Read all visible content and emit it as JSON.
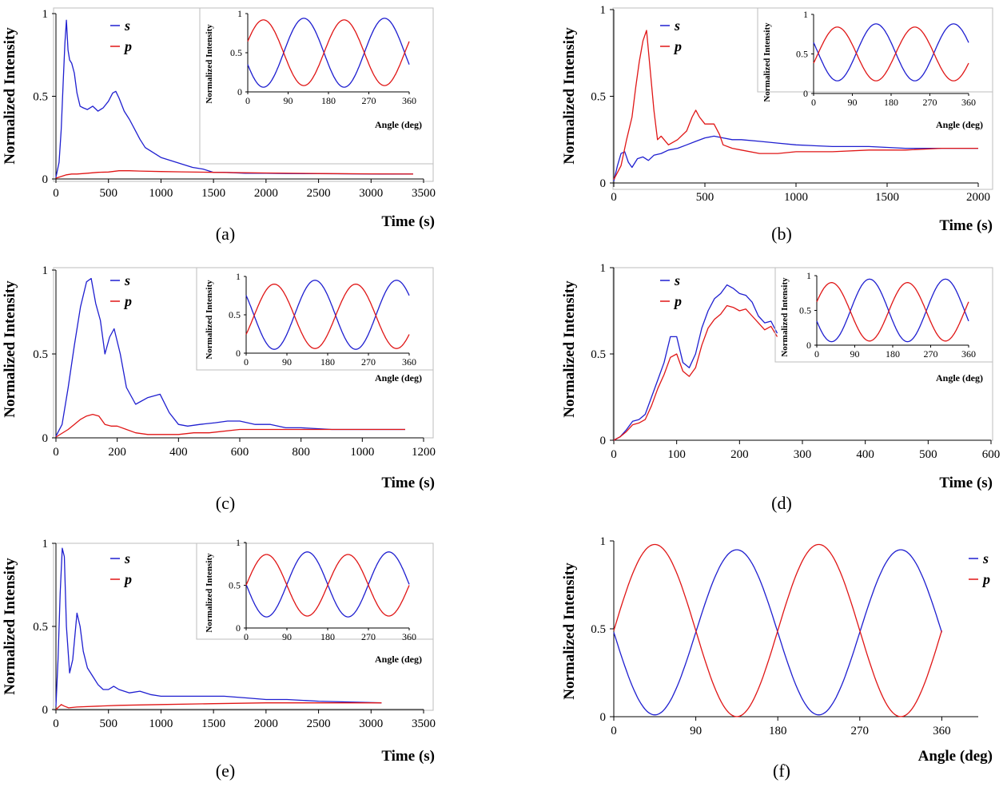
{
  "colors": {
    "s": "#1f1fd0",
    "p": "#e01616"
  },
  "chart_data": [
    {
      "type": "line",
      "caption": "(a)",
      "xlabel": "Time (s)",
      "ylabel": "Normalized Intensity",
      "xlim": [
        0,
        3500
      ],
      "ylim": [
        0,
        1
      ],
      "xticks": [
        0,
        500,
        1000,
        1500,
        2000,
        2500,
        3000,
        3500
      ],
      "yticks": [
        0,
        0.5,
        1
      ],
      "series": [
        {
          "name": "s",
          "x": [
            0,
            30,
            50,
            70,
            85,
            100,
            115,
            130,
            150,
            175,
            200,
            230,
            260,
            300,
            350,
            400,
            450,
            500,
            540,
            570,
            600,
            650,
            700,
            750,
            800,
            850,
            900,
            1000,
            1100,
            1200,
            1300,
            1400,
            1500,
            1600,
            1800,
            2000,
            2200,
            2500,
            2800,
            3100,
            3400
          ],
          "y": [
            0.01,
            0.1,
            0.3,
            0.6,
            0.82,
            0.96,
            0.78,
            0.72,
            0.7,
            0.64,
            0.52,
            0.44,
            0.43,
            0.42,
            0.44,
            0.41,
            0.43,
            0.47,
            0.52,
            0.53,
            0.49,
            0.41,
            0.36,
            0.3,
            0.24,
            0.19,
            0.17,
            0.13,
            0.11,
            0.09,
            0.07,
            0.06,
            0.04,
            0.04,
            0.035,
            0.035,
            0.033,
            0.032,
            0.031,
            0.03,
            0.03
          ]
        },
        {
          "name": "p",
          "x": [
            0,
            50,
            100,
            150,
            200,
            300,
            400,
            500,
            600,
            700,
            800,
            1000,
            1200,
            1500,
            2000,
            2500,
            3000,
            3400
          ],
          "y": [
            0.005,
            0.015,
            0.025,
            0.03,
            0.03,
            0.035,
            0.04,
            0.042,
            0.05,
            0.05,
            0.048,
            0.045,
            0.043,
            0.04,
            0.036,
            0.033,
            0.031,
            0.03
          ]
        }
      ],
      "inset": {
        "xlabel": "Angle (deg)",
        "ylabel": "Normalized Intensity",
        "xticks": [
          0,
          90,
          180,
          270,
          360
        ],
        "yticks": [
          0,
          0.5,
          1
        ],
        "s": {
          "mean": 0.5,
          "amp": -0.44,
          "phase_deg": 35
        },
        "p": {
          "mean": 0.5,
          "amp": 0.42,
          "phase_deg": 35
        }
      }
    },
    {
      "type": "line",
      "caption": "(b)",
      "xlabel": "Time (s)",
      "ylabel": "Normalized Intensity",
      "xlim": [
        0,
        2000
      ],
      "ylim": [
        0,
        1
      ],
      "xticks": [
        0,
        500,
        1000,
        1500,
        2000
      ],
      "yticks": [
        0,
        0.5,
        1
      ],
      "series": [
        {
          "name": "s",
          "x": [
            0,
            20,
            40,
            60,
            80,
            100,
            130,
            160,
            190,
            220,
            260,
            300,
            350,
            400,
            450,
            500,
            550,
            600,
            650,
            700,
            800,
            900,
            1000,
            1200,
            1400,
            1600,
            1800,
            2000
          ],
          "y": [
            0.01,
            0.1,
            0.17,
            0.18,
            0.12,
            0.09,
            0.14,
            0.15,
            0.13,
            0.16,
            0.17,
            0.19,
            0.2,
            0.22,
            0.24,
            0.26,
            0.27,
            0.26,
            0.25,
            0.25,
            0.24,
            0.23,
            0.22,
            0.21,
            0.21,
            0.2,
            0.2,
            0.2
          ]
        },
        {
          "name": "p",
          "x": [
            0,
            40,
            70,
            100,
            120,
            140,
            160,
            180,
            200,
            220,
            240,
            260,
            300,
            350,
            400,
            430,
            450,
            470,
            500,
            550,
            580,
            600,
            650,
            700,
            800,
            900,
            1000,
            1200,
            1400,
            1600,
            1800,
            2000
          ],
          "y": [
            0.02,
            0.1,
            0.25,
            0.38,
            0.55,
            0.7,
            0.82,
            0.88,
            0.65,
            0.42,
            0.25,
            0.27,
            0.22,
            0.25,
            0.3,
            0.38,
            0.42,
            0.38,
            0.34,
            0.34,
            0.28,
            0.22,
            0.2,
            0.19,
            0.17,
            0.17,
            0.18,
            0.18,
            0.19,
            0.19,
            0.2,
            0.2
          ]
        }
      ],
      "inset": {
        "xlabel": "Angle (deg)",
        "ylabel": "Normalized Intensity",
        "xticks": [
          0,
          90,
          180,
          270,
          360
        ],
        "yticks": [
          0,
          0.5,
          1
        ],
        "s": {
          "mean": 0.52,
          "amp": -0.36,
          "phase_deg": 55
        },
        "p": {
          "mean": 0.5,
          "amp": 0.34,
          "phase_deg": 55
        }
      }
    },
    {
      "type": "line",
      "caption": "(c)",
      "xlabel": "Time (s)",
      "ylabel": "Normalized Intensity",
      "xlim": [
        0,
        1200
      ],
      "ylim": [
        0,
        1
      ],
      "xticks": [
        0,
        200,
        400,
        600,
        800,
        1000,
        1200
      ],
      "yticks": [
        0,
        0.5,
        1
      ],
      "series": [
        {
          "name": "s",
          "x": [
            0,
            20,
            40,
            60,
            80,
            100,
            115,
            130,
            145,
            160,
            175,
            190,
            210,
            230,
            260,
            300,
            340,
            370,
            400,
            430,
            470,
            520,
            560,
            600,
            650,
            700,
            750,
            800,
            900,
            1000,
            1140
          ],
          "y": [
            0.01,
            0.08,
            0.3,
            0.55,
            0.78,
            0.93,
            0.95,
            0.8,
            0.7,
            0.5,
            0.6,
            0.65,
            0.5,
            0.3,
            0.2,
            0.24,
            0.26,
            0.15,
            0.08,
            0.07,
            0.08,
            0.09,
            0.1,
            0.1,
            0.08,
            0.08,
            0.06,
            0.06,
            0.05,
            0.05,
            0.05
          ]
        },
        {
          "name": "p",
          "x": [
            0,
            40,
            60,
            80,
            100,
            120,
            140,
            160,
            180,
            200,
            230,
            260,
            300,
            350,
            400,
            450,
            500,
            600,
            700,
            800,
            900,
            1000,
            1140
          ],
          "y": [
            0.005,
            0.05,
            0.08,
            0.11,
            0.13,
            0.14,
            0.13,
            0.08,
            0.07,
            0.07,
            0.05,
            0.03,
            0.02,
            0.02,
            0.02,
            0.03,
            0.03,
            0.05,
            0.05,
            0.05,
            0.05,
            0.05,
            0.05
          ]
        }
      ],
      "inset": {
        "xlabel": "Angle (deg)",
        "ylabel": "Normalized Intensity",
        "xticks": [
          0,
          90,
          180,
          270,
          360
        ],
        "yticks": [
          0,
          0.5,
          1
        ],
        "s": {
          "mean": 0.5,
          "amp": -0.45,
          "phase_deg": 62
        },
        "p": {
          "mean": 0.48,
          "amp": 0.42,
          "phase_deg": 62
        }
      }
    },
    {
      "type": "line",
      "caption": "(d)",
      "xlabel": "Time (s)",
      "ylabel": "Normalized Intensity",
      "xlim": [
        0,
        600
      ],
      "ylim": [
        0,
        1
      ],
      "xticks": [
        0,
        100,
        200,
        300,
        400,
        500,
        600
      ],
      "yticks": [
        0,
        0.5,
        1
      ],
      "series": [
        {
          "name": "s",
          "x": [
            0,
            10,
            20,
            30,
            40,
            50,
            60,
            70,
            80,
            90,
            100,
            110,
            120,
            130,
            140,
            150,
            160,
            170,
            180,
            190,
            200,
            210,
            220,
            230,
            240,
            250,
            260
          ],
          "y": [
            0.0,
            0.02,
            0.06,
            0.11,
            0.12,
            0.15,
            0.25,
            0.35,
            0.45,
            0.6,
            0.6,
            0.45,
            0.42,
            0.5,
            0.65,
            0.75,
            0.82,
            0.85,
            0.9,
            0.88,
            0.85,
            0.84,
            0.8,
            0.72,
            0.68,
            0.69,
            0.62
          ]
        },
        {
          "name": "p",
          "x": [
            0,
            10,
            20,
            30,
            40,
            50,
            60,
            70,
            80,
            90,
            100,
            110,
            120,
            130,
            140,
            150,
            160,
            170,
            180,
            190,
            200,
            210,
            220,
            230,
            240,
            250,
            260
          ],
          "y": [
            0.0,
            0.02,
            0.05,
            0.09,
            0.1,
            0.12,
            0.2,
            0.3,
            0.38,
            0.48,
            0.5,
            0.4,
            0.37,
            0.42,
            0.55,
            0.65,
            0.7,
            0.73,
            0.78,
            0.77,
            0.75,
            0.76,
            0.72,
            0.68,
            0.64,
            0.66,
            0.6
          ]
        }
      ],
      "inset": {
        "xlabel": "Angle (deg)",
        "ylabel": "Normalized Intensity",
        "xticks": [
          0,
          90,
          180,
          270,
          360
        ],
        "yticks": [
          0,
          0.5,
          1
        ],
        "s": {
          "mean": 0.5,
          "amp": -0.45,
          "phase_deg": 35
        },
        "p": {
          "mean": 0.48,
          "amp": 0.42,
          "phase_deg": 35
        }
      }
    },
    {
      "type": "line",
      "caption": "(e)",
      "xlabel": "Time (s)",
      "ylabel": "Normalized Intensity",
      "xlim": [
        0,
        3500
      ],
      "ylim": [
        0,
        1
      ],
      "xticks": [
        0,
        500,
        1000,
        1500,
        2000,
        2500,
        3000,
        3500
      ],
      "yticks": [
        0,
        0.5,
        1
      ],
      "series": [
        {
          "name": "s",
          "x": [
            0,
            20,
            40,
            60,
            80,
            100,
            130,
            160,
            200,
            230,
            260,
            300,
            350,
            400,
            450,
            500,
            550,
            600,
            700,
            800,
            900,
            1000,
            1200,
            1400,
            1600,
            1800,
            2000,
            2200,
            2500,
            2800,
            3100
          ],
          "y": [
            0.02,
            0.3,
            0.7,
            0.97,
            0.92,
            0.5,
            0.22,
            0.3,
            0.58,
            0.5,
            0.35,
            0.25,
            0.2,
            0.15,
            0.12,
            0.12,
            0.14,
            0.12,
            0.1,
            0.11,
            0.09,
            0.08,
            0.08,
            0.08,
            0.08,
            0.07,
            0.06,
            0.06,
            0.05,
            0.045,
            0.04
          ]
        },
        {
          "name": "p",
          "x": [
            0,
            50,
            80,
            120,
            200,
            400,
            600,
            1000,
            1500,
            2000,
            2500,
            3100
          ],
          "y": [
            0.0,
            0.03,
            0.02,
            0.01,
            0.015,
            0.02,
            0.025,
            0.03,
            0.035,
            0.04,
            0.04,
            0.04
          ]
        }
      ],
      "inset": {
        "xlabel": "Angle (deg)",
        "ylabel": "Normalized Intensity",
        "xticks": [
          0,
          90,
          180,
          270,
          360
        ],
        "yticks": [
          0,
          0.5,
          1
        ],
        "s": {
          "mean": 0.51,
          "amp": -0.38,
          "phase_deg": 45
        },
        "p": {
          "mean": 0.5,
          "amp": 0.36,
          "phase_deg": 45
        }
      }
    },
    {
      "type": "line",
      "caption": "(f)",
      "xlabel": "Angle (deg)",
      "ylabel": "Normalized Intensity",
      "xlim": [
        0,
        400
      ],
      "ylim": [
        0,
        1
      ],
      "xticks": [
        0,
        90,
        180,
        270,
        360
      ],
      "yticks": [
        0,
        0.5,
        1
      ],
      "series": [
        {
          "name": "s",
          "mean": 0.48,
          "amp": -0.47,
          "phase_deg": 45
        },
        {
          "name": "p",
          "mean": 0.49,
          "amp": 0.49,
          "phase_deg": 45
        }
      ]
    }
  ]
}
